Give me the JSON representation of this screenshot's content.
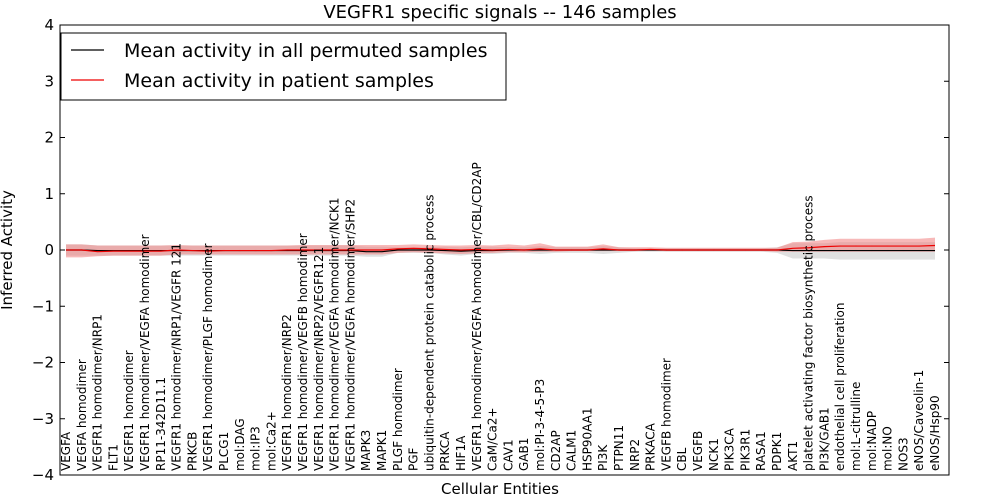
{
  "chart_data": {
    "type": "line",
    "title": "VEGFR1 specific signals -- 146 samples",
    "xlabel": "Cellular Entities",
    "ylabel": "Inferred Activity",
    "ylim": [
      -4,
      4
    ],
    "yticks": [
      -4,
      -3,
      -2,
      -1,
      0,
      1,
      2,
      3,
      4
    ],
    "ytick_labels": [
      "−4",
      "−3",
      "−2",
      "−1",
      "0",
      "1",
      "2",
      "3",
      "4"
    ],
    "grid": false,
    "legend_position": "top-left",
    "categories": [
      "VEGFA",
      "VEGFA homodimer",
      "VEGFR1 homodimer/NRP1",
      "FLT1",
      "VEGFR1 homodimer",
      "VEGFR1 homodimer/VEGFA homodimer",
      "RP11-342D11.1",
      "VEGFR1 homodimer/NRP1/VEGFR 121",
      "PRKCB",
      "VEGFR1 homodimer/PLGF homodimer",
      "PLCG1",
      "mol:DAG",
      "mol:IP3",
      "mol:Ca2+",
      "VEGFR1 homodimer/NRP2",
      "VEGFR1 homodimer/VEGFB homodimer",
      "VEGFR1 homodimer/NRP2/VEGFR121",
      "VEGFR1 homodimer/VEGFA homodimer/NCK1",
      "VEGFR1 homodimer/VEGFA homodimer/SHP2",
      "MAPK3",
      "MAPK1",
      "PLGF homodimer",
      "PGF",
      "ubiquitin-dependent protein catabolic process",
      "PRKCA",
      "HIF1A",
      "VEGFR1 homodimer/VEGFA homodimer/CBL/CD2AP",
      "CaM/Ca2+",
      "CAV1",
      "GAB1",
      "mol:PI-3-4-5-P3",
      "CD2AP",
      "CALM1",
      "HSP90AA1",
      "PI3K",
      "PTPN11",
      "NRP2",
      "PRKACA",
      "VEGFB homodimer",
      "CBL",
      "VEGFB",
      "NCK1",
      "PIK3CA",
      "PIK3R1",
      "RASA1",
      "PDPK1",
      "AKT1",
      "platelet activating factor biosynthetic process",
      "PI3K/GAB1",
      "endothelial cell proliferation",
      "mol:L-citrulline",
      "mol:NADP",
      "mol:NO",
      "NOS3",
      "eNOS/Caveolin-1",
      "eNOS/Hsp90"
    ],
    "series": [
      {
        "name": "Mean activity in all permuted samples",
        "color": "#000000",
        "band_color": "#bbbbbb",
        "values": [
          0.0,
          0.0,
          -0.01,
          -0.01,
          -0.01,
          -0.01,
          -0.01,
          -0.01,
          -0.01,
          -0.01,
          -0.01,
          -0.01,
          -0.01,
          -0.01,
          -0.01,
          -0.01,
          -0.01,
          -0.01,
          -0.01,
          -0.03,
          -0.03,
          0.0,
          0.0,
          0.0,
          -0.01,
          -0.02,
          -0.01,
          -0.01,
          0.0,
          0.0,
          0.0,
          0.0,
          0.0,
          0.0,
          0.0,
          0.0,
          0.0,
          0.0,
          0.0,
          0.0,
          0.0,
          0.0,
          0.0,
          0.0,
          0.0,
          0.0,
          -0.01,
          -0.01,
          -0.01,
          -0.01,
          -0.01,
          -0.01,
          -0.01,
          -0.01,
          -0.01,
          -0.01
        ],
        "lower": [
          -0.1,
          -0.1,
          -0.1,
          -0.1,
          -0.1,
          -0.1,
          -0.1,
          -0.1,
          -0.1,
          -0.1,
          -0.1,
          -0.1,
          -0.1,
          -0.1,
          -0.1,
          -0.1,
          -0.1,
          -0.1,
          -0.1,
          -0.12,
          -0.12,
          -0.05,
          -0.05,
          -0.05,
          -0.08,
          -0.1,
          -0.07,
          -0.07,
          -0.05,
          -0.05,
          -0.07,
          -0.05,
          -0.05,
          -0.05,
          -0.07,
          -0.05,
          -0.03,
          -0.03,
          -0.03,
          -0.03,
          -0.03,
          -0.03,
          -0.03,
          -0.03,
          -0.03,
          -0.05,
          -0.15,
          -0.15,
          -0.15,
          -0.17,
          -0.17,
          -0.17,
          -0.17,
          -0.17,
          -0.17,
          -0.17
        ],
        "upper": [
          0.1,
          0.1,
          0.08,
          0.08,
          0.08,
          0.08,
          0.08,
          0.08,
          0.08,
          0.08,
          0.08,
          0.08,
          0.08,
          0.08,
          0.08,
          0.08,
          0.08,
          0.08,
          0.08,
          0.06,
          0.06,
          0.05,
          0.05,
          0.05,
          0.06,
          0.05,
          0.06,
          0.06,
          0.05,
          0.05,
          0.07,
          0.05,
          0.05,
          0.05,
          0.07,
          0.05,
          0.03,
          0.03,
          0.03,
          0.03,
          0.03,
          0.03,
          0.03,
          0.03,
          0.03,
          0.05,
          0.12,
          0.12,
          0.12,
          0.14,
          0.14,
          0.14,
          0.14,
          0.14,
          0.14,
          0.14
        ]
      },
      {
        "name": "Mean activity in patient samples",
        "color": "#ee0000",
        "band_color": "#f08080",
        "values": [
          0.0,
          0.0,
          -0.03,
          -0.02,
          -0.02,
          -0.02,
          -0.02,
          0.0,
          -0.01,
          -0.02,
          -0.01,
          -0.01,
          -0.01,
          -0.01,
          0.0,
          0.0,
          0.0,
          0.0,
          0.0,
          0.0,
          0.0,
          0.02,
          0.03,
          0.02,
          0.01,
          0.0,
          0.01,
          0.0,
          0.01,
          0.0,
          0.02,
          0.0,
          0.0,
          0.0,
          0.02,
          0.0,
          0.0,
          0.01,
          0.0,
          0.0,
          0.0,
          0.0,
          0.0,
          0.0,
          0.0,
          0.0,
          0.03,
          0.04,
          0.06,
          0.07,
          0.07,
          0.07,
          0.07,
          0.07,
          0.07,
          0.08
        ],
        "lower": [
          -0.13,
          -0.13,
          -0.11,
          -0.1,
          -0.1,
          -0.1,
          -0.1,
          -0.08,
          -0.08,
          -0.08,
          -0.08,
          -0.08,
          -0.08,
          -0.08,
          -0.08,
          -0.08,
          -0.08,
          -0.08,
          -0.08,
          -0.08,
          -0.08,
          -0.05,
          -0.04,
          -0.05,
          -0.06,
          -0.07,
          -0.06,
          -0.05,
          -0.04,
          -0.04,
          -0.03,
          -0.03,
          -0.02,
          -0.02,
          -0.02,
          -0.02,
          -0.02,
          -0.01,
          -0.02,
          -0.02,
          -0.02,
          -0.02,
          -0.02,
          -0.02,
          -0.02,
          -0.03,
          -0.03,
          -0.03,
          -0.03,
          -0.03,
          -0.03,
          -0.03,
          -0.03,
          -0.03,
          -0.03,
          -0.03
        ],
        "upper": [
          0.1,
          0.1,
          0.08,
          0.08,
          0.08,
          0.08,
          0.08,
          0.09,
          0.08,
          0.08,
          0.08,
          0.08,
          0.08,
          0.08,
          0.08,
          0.09,
          0.09,
          0.09,
          0.09,
          0.09,
          0.09,
          0.09,
          0.1,
          0.09,
          0.08,
          0.08,
          0.09,
          0.08,
          0.1,
          0.08,
          0.12,
          0.06,
          0.06,
          0.06,
          0.1,
          0.05,
          0.05,
          0.05,
          0.04,
          0.04,
          0.04,
          0.04,
          0.04,
          0.04,
          0.04,
          0.04,
          0.14,
          0.15,
          0.18,
          0.2,
          0.2,
          0.2,
          0.2,
          0.2,
          0.2,
          0.22
        ]
      }
    ]
  }
}
